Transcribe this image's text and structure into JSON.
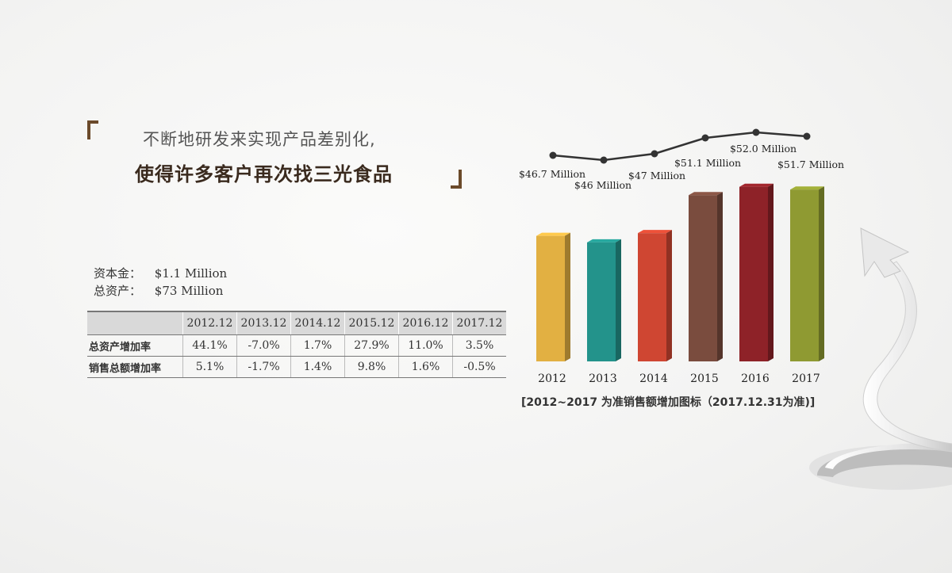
{
  "headline": {
    "line1": "不断地研发来实现产品差别化,",
    "line2": "使得许多客户再次找三光食品"
  },
  "capital": {
    "rows": [
      {
        "label": "资本金：",
        "value": "$1.1 Million"
      },
      {
        "label": "总资产：",
        "value": "$73 Million"
      }
    ]
  },
  "stats_table": {
    "headers": [
      "2012.12",
      "2013.12",
      "2014.12",
      "2015.12",
      "2016.12",
      "2017.12"
    ],
    "rows": [
      {
        "label": "总资产增加率",
        "cells": [
          "44.1%",
          "-7.0%",
          "1.7%",
          "27.9%",
          "11.0%",
          "3.5%"
        ]
      },
      {
        "label": "销售总额增加率",
        "cells": [
          "5.1%",
          "-1.7%",
          "1.4%",
          "9.8%",
          "1.6%",
          "-0.5%"
        ]
      }
    ]
  },
  "chart_data": {
    "type": "bar",
    "categories": [
      "2012",
      "2013",
      "2014",
      "2015",
      "2016",
      "2017"
    ],
    "values": [
      46.7,
      46,
      47,
      51.1,
      52.0,
      51.7
    ],
    "data_labels": [
      "$46.7 Million",
      "$46 Million",
      "$47 Million",
      "$51.1 Million",
      "$52.0 Million",
      "$51.7 Million"
    ],
    "colors": [
      "#e2b042",
      "#23938b",
      "#cf4632",
      "#7a4c3e",
      "#8e2228",
      "#8f9a32"
    ],
    "line_color": "#333333",
    "title": "",
    "xlabel": "",
    "ylabel": "",
    "caption": "[2012~2017 为准销售额增加图标（2017.12.31为准)]"
  }
}
